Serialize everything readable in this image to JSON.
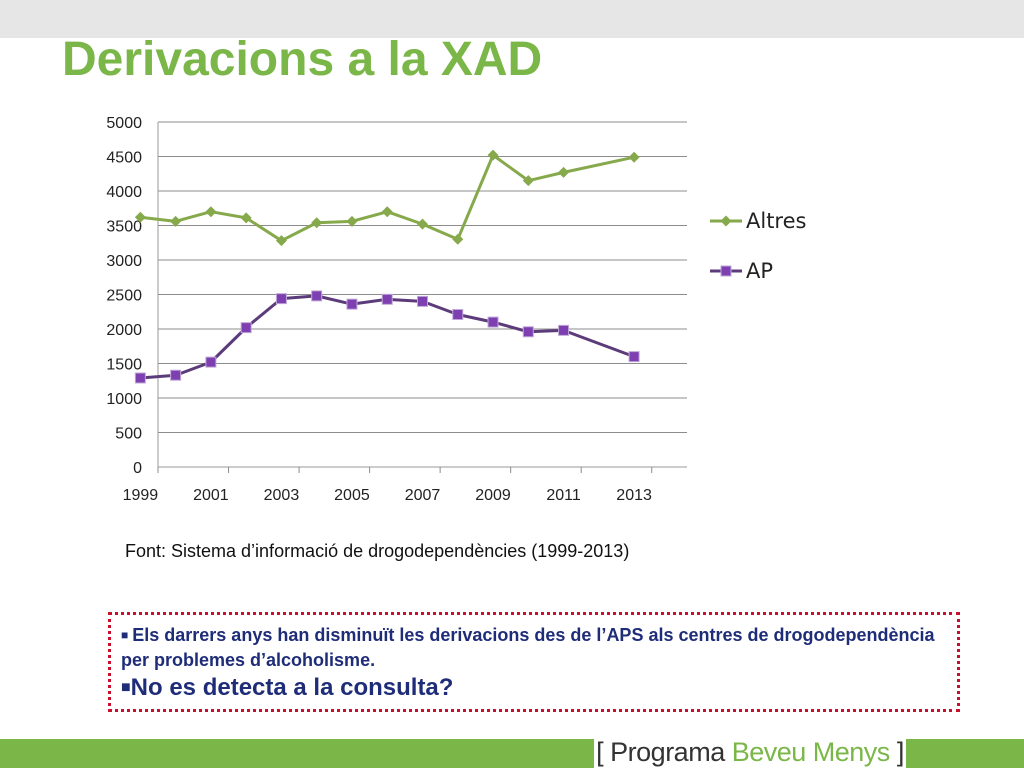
{
  "slide": {
    "title": "Derivacions a la XAD",
    "source_note": "Font: Sistema d’informació de drogodependències (1999-2013)",
    "note_line1": "Els darrers anys han disminuït les derivacions des de l’APS als centres de drogodependència per problemes d’alcoholisme.",
    "note_line2": "No es detecta a la consulta?",
    "footer_open": "[ Programa ",
    "footer_accent": "Beveu Menys",
    "footer_close": " ]",
    "colors": {
      "title": "#7ab648",
      "note_text": "#1f2d78",
      "note_border": "#c8102e",
      "footer": "#7ab648"
    }
  },
  "chart_data": {
    "type": "line",
    "x": [
      1999,
      2000,
      2001,
      2002,
      2003,
      2004,
      2005,
      2006,
      2007,
      2008,
      2009,
      2010,
      2011,
      2013
    ],
    "x_tick_labels": [
      1999,
      2001,
      2003,
      2005,
      2007,
      2009,
      2011,
      2013
    ],
    "ylim": [
      0,
      5000
    ],
    "y_ticks": [
      0,
      500,
      1000,
      1500,
      2000,
      2500,
      3000,
      3500,
      4000,
      4500,
      5000
    ],
    "grid": true,
    "legend_position": "right",
    "series": [
      {
        "name": "Altres",
        "color": "#86a94c",
        "marker": "diamond",
        "values": [
          3620,
          3560,
          3700,
          3610,
          3280,
          3540,
          3560,
          3700,
          3520,
          3300,
          4520,
          4150,
          4270,
          4490
        ]
      },
      {
        "name": "AP",
        "color": "#5c3b7a",
        "marker": "square",
        "values": [
          1290,
          1330,
          1520,
          2020,
          2440,
          2480,
          2360,
          2430,
          2400,
          2210,
          2100,
          1960,
          1980,
          1600
        ]
      }
    ]
  }
}
